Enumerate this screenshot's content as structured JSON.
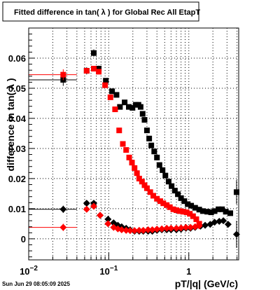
{
  "chart_data": {
    "type": "scatter",
    "title": "Fitted difference in tan( λ ) for Global Rec All EtapT",
    "xlabel": "pT/|q| (GeV/c)",
    "ylabel": "difference in tan( λ )",
    "x_scale": "log",
    "xlim": [
      0.01,
      4.2
    ],
    "ylim": [
      -0.007,
      0.07
    ],
    "x_major_ticks": [
      {
        "value": 0.01,
        "base": "10",
        "exp": "−2"
      },
      {
        "value": 0.1,
        "base": "10",
        "exp": "−1"
      },
      {
        "value": 1,
        "base": "1",
        "exp": ""
      }
    ],
    "y_ticks": [
      {
        "value": 0,
        "label": "0"
      },
      {
        "value": 0.01,
        "label": "0.01"
      },
      {
        "value": 0.02,
        "label": "0.02"
      },
      {
        "value": 0.03,
        "label": "0.03"
      },
      {
        "value": 0.04,
        "label": "0.04"
      },
      {
        "value": 0.05,
        "label": "0.05"
      },
      {
        "value": 0.06,
        "label": "0.06"
      }
    ],
    "grid": true,
    "timestamp": "Sun Jun 29 08:05:09 2025",
    "colors": {
      "black_series": "#000000",
      "red_series": "#ff0000"
    },
    "series": [
      {
        "color": "#000000",
        "marker": "square",
        "points": [
          {
            "x": 0.027,
            "y": 0.0528,
            "xerr": [
              0.01,
              0.04
            ],
            "yerr": 0.002
          },
          {
            "x": 0.053,
            "y": 0.0558,
            "yerr": 0.0012
          },
          {
            "x": 0.065,
            "y": 0.0617,
            "yerr": 0.0012
          },
          {
            "x": 0.075,
            "y": 0.0565,
            "yerr": 0.001
          },
          {
            "x": 0.092,
            "y": 0.0525
          },
          {
            "x": 0.11,
            "y": 0.049
          },
          {
            "x": 0.125,
            "y": 0.0478
          },
          {
            "x": 0.138,
            "y": 0.0438
          },
          {
            "x": 0.158,
            "y": 0.0453
          },
          {
            "x": 0.178,
            "y": 0.0438
          },
          {
            "x": 0.198,
            "y": 0.0435
          },
          {
            "x": 0.218,
            "y": 0.0445
          },
          {
            "x": 0.235,
            "y": 0.0445
          },
          {
            "x": 0.25,
            "y": 0.0438
          },
          {
            "x": 0.265,
            "y": 0.0415
          },
          {
            "x": 0.28,
            "y": 0.0395
          },
          {
            "x": 0.3,
            "y": 0.036
          },
          {
            "x": 0.32,
            "y": 0.0333
          },
          {
            "x": 0.34,
            "y": 0.031
          },
          {
            "x": 0.37,
            "y": 0.029
          },
          {
            "x": 0.4,
            "y": 0.027
          },
          {
            "x": 0.43,
            "y": 0.0245
          },
          {
            "x": 0.47,
            "y": 0.0228
          },
          {
            "x": 0.51,
            "y": 0.021
          },
          {
            "x": 0.56,
            "y": 0.019
          },
          {
            "x": 0.61,
            "y": 0.0175
          },
          {
            "x": 0.67,
            "y": 0.016
          },
          {
            "x": 0.73,
            "y": 0.0148
          },
          {
            "x": 0.8,
            "y": 0.0135
          },
          {
            "x": 0.88,
            "y": 0.0125
          },
          {
            "x": 0.97,
            "y": 0.0115
          },
          {
            "x": 1.07,
            "y": 0.011
          },
          {
            "x": 1.2,
            "y": 0.0103
          },
          {
            "x": 1.35,
            "y": 0.0097
          },
          {
            "x": 1.5,
            "y": 0.0092
          },
          {
            "x": 1.7,
            "y": 0.009
          },
          {
            "x": 1.9,
            "y": 0.0088
          },
          {
            "x": 2.1,
            "y": 0.0092
          },
          {
            "x": 2.35,
            "y": 0.0098
          },
          {
            "x": 2.6,
            "y": 0.0098
          },
          {
            "x": 2.9,
            "y": 0.009
          },
          {
            "x": 3.3,
            "y": 0.0085
          },
          {
            "x": 3.95,
            "y": 0.0155,
            "yerr": 0.004
          }
        ]
      },
      {
        "color": "#000000",
        "marker": "diamond",
        "points": [
          {
            "x": 0.027,
            "y": 0.0098,
            "xerr": [
              0.01,
              0.04
            ],
            "yerr": 0.0012
          },
          {
            "x": 0.053,
            "y": 0.0118,
            "yerr": 0.0008
          },
          {
            "x": 0.065,
            "y": 0.0118,
            "yerr": 0.0008
          },
          {
            "x": 0.078,
            "y": 0.0078
          },
          {
            "x": 0.098,
            "y": 0.0065
          },
          {
            "x": 0.115,
            "y": 0.0053
          },
          {
            "x": 0.13,
            "y": 0.0045
          },
          {
            "x": 0.145,
            "y": 0.004
          },
          {
            "x": 0.165,
            "y": 0.0035
          },
          {
            "x": 0.185,
            "y": 0.003
          },
          {
            "x": 0.21,
            "y": 0.0025
          },
          {
            "x": 0.24,
            "y": 0.0025
          },
          {
            "x": 0.27,
            "y": 0.0025
          },
          {
            "x": 0.31,
            "y": 0.0025
          },
          {
            "x": 0.35,
            "y": 0.0025
          },
          {
            "x": 0.4,
            "y": 0.0028
          },
          {
            "x": 0.46,
            "y": 0.003
          },
          {
            "x": 0.53,
            "y": 0.003
          },
          {
            "x": 0.6,
            "y": 0.003
          },
          {
            "x": 0.7,
            "y": 0.003
          },
          {
            "x": 0.8,
            "y": 0.0032
          },
          {
            "x": 0.92,
            "y": 0.0035
          },
          {
            "x": 1.05,
            "y": 0.0035
          },
          {
            "x": 1.2,
            "y": 0.0038
          },
          {
            "x": 1.4,
            "y": 0.0042
          },
          {
            "x": 1.6,
            "y": 0.0045
          },
          {
            "x": 1.85,
            "y": 0.0048
          },
          {
            "x": 2.1,
            "y": 0.0055
          },
          {
            "x": 2.4,
            "y": 0.0058
          },
          {
            "x": 2.7,
            "y": 0.006
          },
          {
            "x": 3.1,
            "y": 0.0048
          },
          {
            "x": 3.95,
            "y": 0.0015,
            "yerr": 0.0045
          }
        ]
      },
      {
        "color": "#ff0000",
        "marker": "square",
        "points": [
          {
            "x": 0.027,
            "y": 0.0545,
            "xerr": [
              0.01,
              0.04
            ],
            "yerr": 0.0018
          },
          {
            "x": 0.053,
            "y": 0.0558
          },
          {
            "x": 0.065,
            "y": 0.0565
          },
          {
            "x": 0.075,
            "y": 0.0555
          },
          {
            "x": 0.09,
            "y": 0.051
          },
          {
            "x": 0.105,
            "y": 0.047
          },
          {
            "x": 0.12,
            "y": 0.043
          },
          {
            "x": 0.135,
            "y": 0.036
          },
          {
            "x": 0.15,
            "y": 0.0315
          },
          {
            "x": 0.165,
            "y": 0.0295
          },
          {
            "x": 0.18,
            "y": 0.027
          },
          {
            "x": 0.195,
            "y": 0.0253
          },
          {
            "x": 0.21,
            "y": 0.0235
          },
          {
            "x": 0.225,
            "y": 0.0218
          },
          {
            "x": 0.24,
            "y": 0.02
          },
          {
            "x": 0.26,
            "y": 0.019
          },
          {
            "x": 0.28,
            "y": 0.0178
          },
          {
            "x": 0.3,
            "y": 0.0168
          },
          {
            "x": 0.33,
            "y": 0.0155
          },
          {
            "x": 0.36,
            "y": 0.0143
          },
          {
            "x": 0.4,
            "y": 0.0133
          },
          {
            "x": 0.44,
            "y": 0.0125
          },
          {
            "x": 0.48,
            "y": 0.0118
          },
          {
            "x": 0.53,
            "y": 0.0112
          },
          {
            "x": 0.58,
            "y": 0.0105
          },
          {
            "x": 0.64,
            "y": 0.0098
          },
          {
            "x": 0.7,
            "y": 0.0095
          },
          {
            "x": 0.77,
            "y": 0.0092
          },
          {
            "x": 0.85,
            "y": 0.009
          },
          {
            "x": 0.94,
            "y": 0.0088
          },
          {
            "x": 1.03,
            "y": 0.0083
          },
          {
            "x": 1.13,
            "y": 0.0075
          },
          {
            "x": 1.24,
            "y": 0.0065
          },
          {
            "x": 1.35,
            "y": 0.005
          }
        ]
      },
      {
        "color": "#ff0000",
        "marker": "diamond",
        "points": [
          {
            "x": 0.027,
            "y": 0.0038,
            "xerr": [
              0.01,
              0.04
            ],
            "yerr": 0.0012
          },
          {
            "x": 0.053,
            "y": 0.0098
          },
          {
            "x": 0.065,
            "y": 0.0108
          },
          {
            "x": 0.078,
            "y": 0.0078
          },
          {
            "x": 0.098,
            "y": 0.005
          },
          {
            "x": 0.115,
            "y": 0.0038
          },
          {
            "x": 0.13,
            "y": 0.0033
          },
          {
            "x": 0.145,
            "y": 0.003
          },
          {
            "x": 0.165,
            "y": 0.0028
          },
          {
            "x": 0.185,
            "y": 0.0027
          },
          {
            "x": 0.21,
            "y": 0.0027
          },
          {
            "x": 0.24,
            "y": 0.0028
          },
          {
            "x": 0.27,
            "y": 0.0028
          },
          {
            "x": 0.31,
            "y": 0.003
          },
          {
            "x": 0.35,
            "y": 0.003
          },
          {
            "x": 0.4,
            "y": 0.0032
          },
          {
            "x": 0.46,
            "y": 0.0033
          },
          {
            "x": 0.53,
            "y": 0.0035
          },
          {
            "x": 0.6,
            "y": 0.0035
          },
          {
            "x": 0.7,
            "y": 0.0035
          },
          {
            "x": 0.8,
            "y": 0.0036
          },
          {
            "x": 0.92,
            "y": 0.0038
          },
          {
            "x": 1.05,
            "y": 0.0038
          },
          {
            "x": 1.2,
            "y": 0.004
          },
          {
            "x": 1.35,
            "y": 0.0043
          }
        ]
      }
    ]
  }
}
